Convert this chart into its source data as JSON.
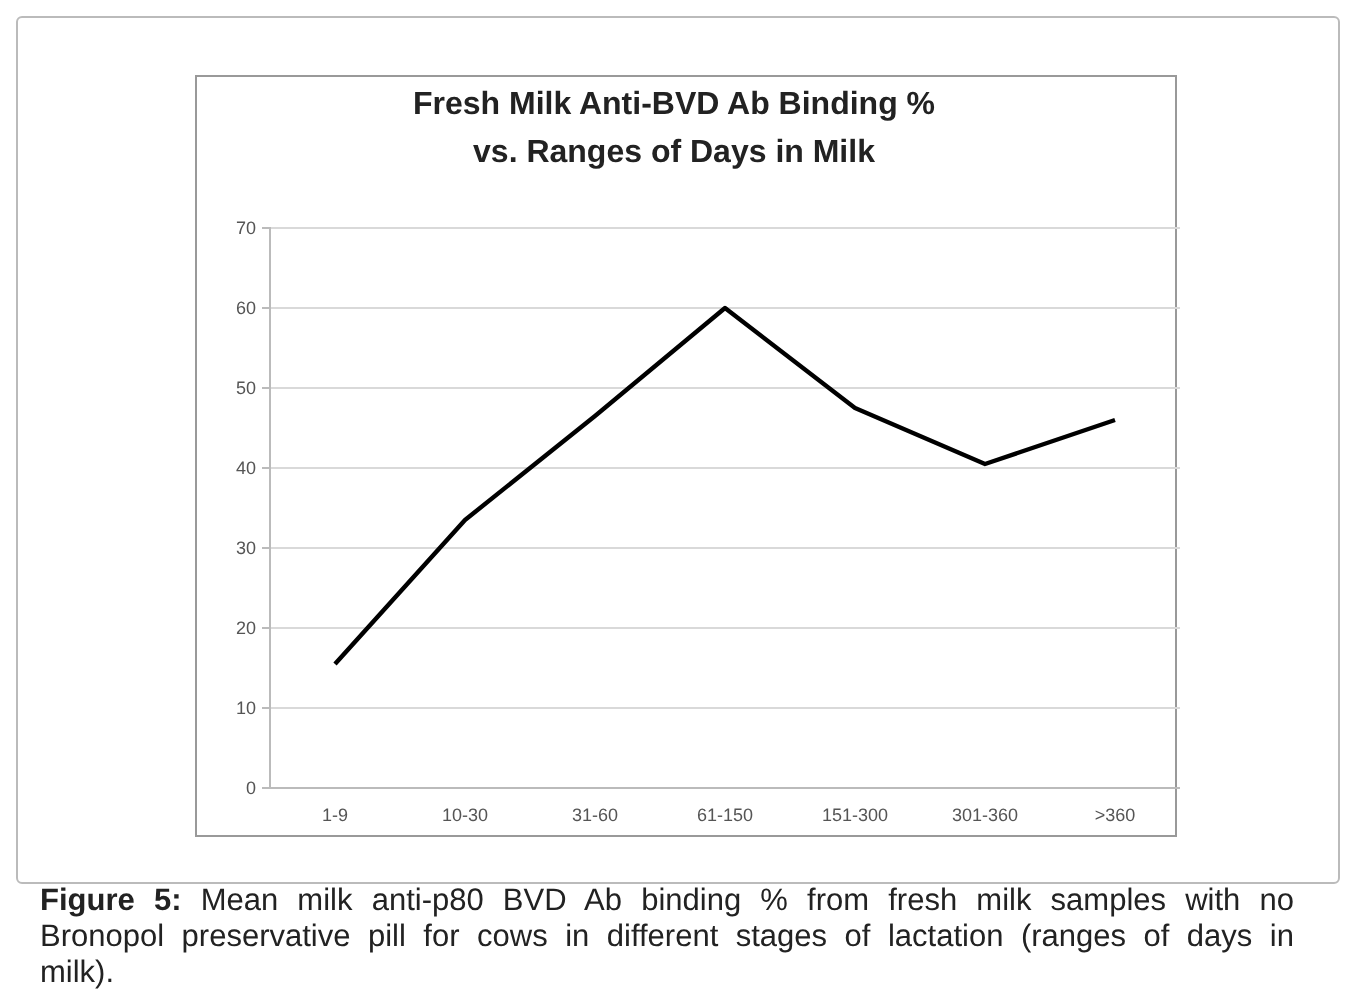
{
  "chart_data": {
    "type": "line",
    "title": "Fresh Milk Anti-BVD Ab Binding %\nvs. Ranges of Days in Milk",
    "categories": [
      "1-9",
      "10-30",
      "31-60",
      "61-150",
      "151-300",
      "301-360",
      ">360"
    ],
    "series": [
      {
        "color": "#000000",
        "values": [
          15.5,
          33.5,
          46.5,
          60,
          47.5,
          40.5,
          46
        ]
      }
    ],
    "ylim": [
      0,
      70
    ],
    "yticks": [
      0,
      10,
      20,
      30,
      40,
      50,
      60,
      70
    ],
    "grid": "y",
    "marker": "none",
    "line_style": "solid",
    "annotations": [
      "Figure 5: Mean milk anti-p80 BVD Ab binding % from fresh milk samples with no Bronopol preservative pill for cows in different stages of lactation (ranges of days in milk)."
    ]
  }
}
